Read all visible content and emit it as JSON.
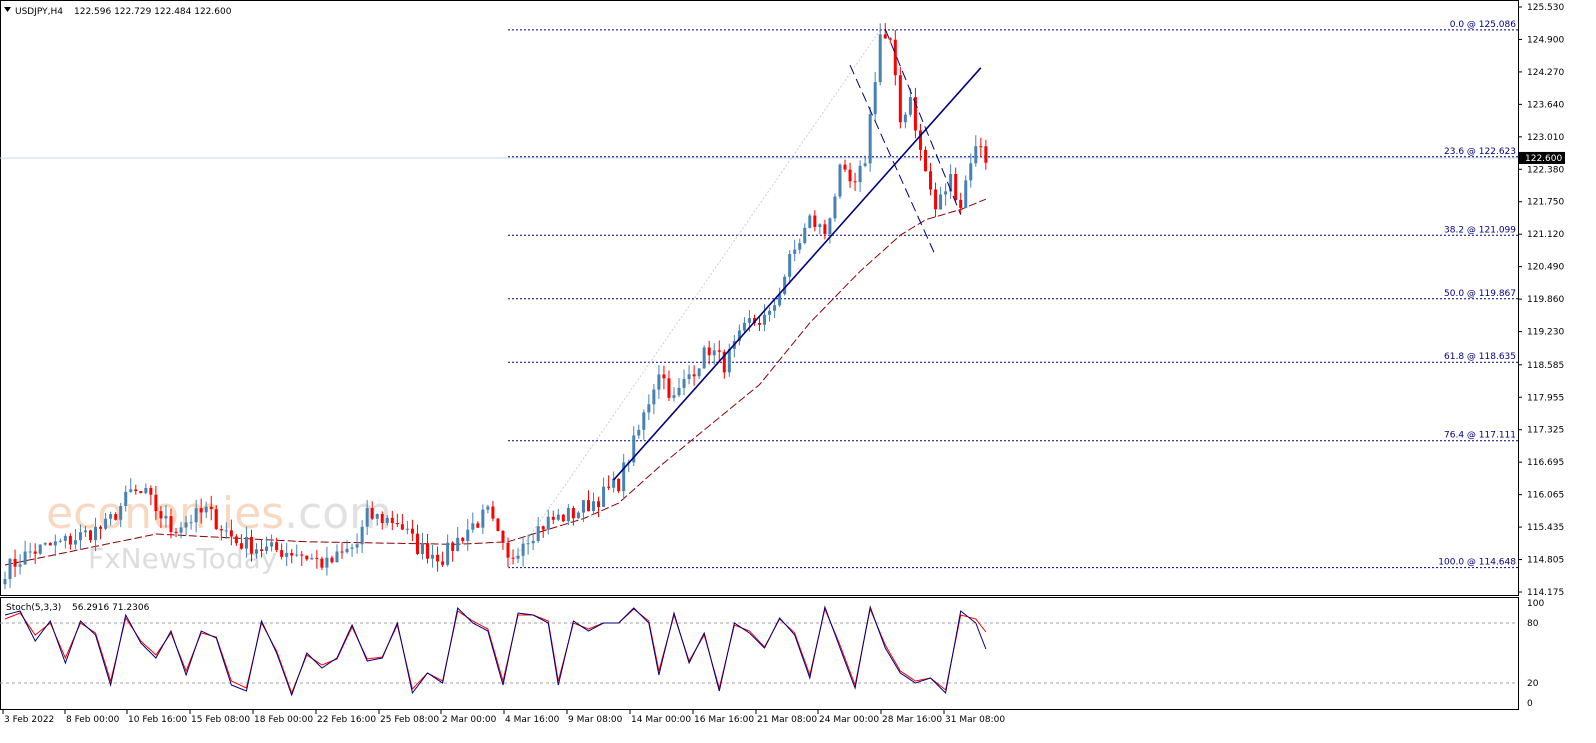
{
  "header": {
    "symbol_label": "USDJPY,H4",
    "ohlc": "122.596 122.729 122.484 122.600"
  },
  "stoch_header": {
    "label": "Stoch(5,3,3)",
    "values": "56.2916 71.2306"
  },
  "watermark": {
    "brand_main": "economies",
    "brand_suffix": ".com",
    "brand_sub": "FxNewsToday"
  },
  "colors": {
    "bull": "#4682b4",
    "bear": "#ff0000",
    "ma": "#8b0000",
    "trendline": "#00007f",
    "fib": "#00007f",
    "stoch_main": "#00007f",
    "stoch_signal": "#ff0000",
    "price_line": "#c6d9ea",
    "price_box": "#000000"
  },
  "chart_data": {
    "type": "candlestick",
    "symbol": "USDJPY",
    "timeframe": "H4",
    "ylim": [
      114.175,
      125.53
    ],
    "y_ticks": [
      "125.530",
      "124.900",
      "124.270",
      "123.640",
      "123.010",
      "122.380",
      "121.750",
      "121.120",
      "120.490",
      "119.860",
      "119.230",
      "118.585",
      "117.955",
      "117.325",
      "116.695",
      "116.065",
      "115.435",
      "114.805",
      "114.175"
    ],
    "x_ticks": [
      "3 Feb 2022",
      "8 Feb 00:00",
      "10 Feb 16:00",
      "15 Feb 08:00",
      "18 Feb 00:00",
      "22 Feb 16:00",
      "25 Feb 08:00",
      "2 Mar 00:00",
      "4 Mar 16:00",
      "9 Mar 08:00",
      "14 Mar 00:00",
      "16 Mar 16:00",
      "21 Mar 08:00",
      "24 Mar 00:00",
      "28 Mar 16:00",
      "31 Mar 08:00"
    ],
    "current_price": "122.600",
    "bar_count": 196,
    "close_anchors": [
      [
        0,
        114.6
      ],
      [
        5,
        114.95
      ],
      [
        12,
        115.15
      ],
      [
        20,
        115.45
      ],
      [
        25,
        116.1
      ],
      [
        28,
        116.05
      ],
      [
        33,
        115.4
      ],
      [
        40,
        115.75
      ],
      [
        46,
        115.15
      ],
      [
        52,
        115.0
      ],
      [
        58,
        114.95
      ],
      [
        64,
        114.7
      ],
      [
        70,
        115.1
      ],
      [
        72,
        115.65
      ],
      [
        78,
        115.55
      ],
      [
        82,
        115.05
      ],
      [
        87,
        114.85
      ],
      [
        92,
        115.4
      ],
      [
        96,
        115.7
      ],
      [
        100,
        114.75
      ],
      [
        103,
        115.2
      ],
      [
        108,
        115.55
      ],
      [
        113,
        115.7
      ],
      [
        118,
        116.0
      ],
      [
        122,
        116.3
      ],
      [
        126,
        117.3
      ],
      [
        130,
        118.5
      ],
      [
        133,
        117.9
      ],
      [
        136,
        118.4
      ],
      [
        140,
        118.9
      ],
      [
        143,
        118.6
      ],
      [
        148,
        119.4
      ],
      [
        152,
        119.5
      ],
      [
        156,
        120.6
      ],
      [
        160,
        121.4
      ],
      [
        163,
        121.15
      ],
      [
        166,
        122.3
      ],
      [
        169,
        122.0
      ],
      [
        171,
        122.6
      ],
      [
        174,
        125.0
      ],
      [
        176,
        124.8
      ],
      [
        178,
        123.3
      ],
      [
        180,
        123.8
      ],
      [
        182,
        122.7
      ],
      [
        185,
        121.6
      ],
      [
        188,
        122.2
      ],
      [
        190,
        121.7
      ],
      [
        192,
        122.6
      ],
      [
        194,
        122.9
      ],
      [
        195,
        122.6
      ]
    ],
    "ma_anchors": [
      [
        0,
        114.7
      ],
      [
        30,
        115.3
      ],
      [
        60,
        115.15
      ],
      [
        90,
        115.1
      ],
      [
        100,
        115.15
      ],
      [
        115,
        115.6
      ],
      [
        122,
        115.9
      ],
      [
        130,
        116.6
      ],
      [
        140,
        117.4
      ],
      [
        150,
        118.2
      ],
      [
        160,
        119.4
      ],
      [
        170,
        120.4
      ],
      [
        178,
        121.1
      ],
      [
        183,
        121.4
      ],
      [
        190,
        121.6
      ],
      [
        195,
        121.8
      ]
    ],
    "fibonacci": [
      {
        "label": "0.0 @ 125.086",
        "price": 125.086
      },
      {
        "label": "23.6 @ 122.623",
        "price": 122.623
      },
      {
        "label": "38.2 @ 121.099",
        "price": 121.099
      },
      {
        "label": "50.0 @ 119.867",
        "price": 119.867
      },
      {
        "label": "61.8 @ 118.635",
        "price": 118.635
      },
      {
        "label": "76.4 @ 117.111",
        "price": 117.111
      },
      {
        "label": "100.0 @ 114.648",
        "price": 114.648
      }
    ],
    "trendline": {
      "from": [
        121,
        116.35
      ],
      "to": [
        194,
        124.35
      ]
    },
    "channel_lines": [
      {
        "from": [
          168,
          124.4
        ],
        "to": [
          185,
          120.7
        ]
      },
      {
        "from": [
          175,
          125.1
        ],
        "to": [
          190,
          121.5
        ]
      }
    ],
    "stochastic": {
      "ylim": [
        0,
        100
      ],
      "levels": [
        80,
        20
      ],
      "y_ticks": [
        "100",
        "80",
        "20",
        "0"
      ],
      "main_anchors": [
        [
          0,
          88
        ],
        [
          3,
          92
        ],
        [
          6,
          62
        ],
        [
          9,
          82
        ],
        [
          12,
          40
        ],
        [
          15,
          82
        ],
        [
          18,
          68
        ],
        [
          21,
          18
        ],
        [
          24,
          88
        ],
        [
          27,
          60
        ],
        [
          30,
          45
        ],
        [
          33,
          72
        ],
        [
          36,
          28
        ],
        [
          39,
          72
        ],
        [
          42,
          65
        ],
        [
          45,
          18
        ],
        [
          48,
          12
        ],
        [
          51,
          82
        ],
        [
          54,
          50
        ],
        [
          57,
          8
        ],
        [
          60,
          50
        ],
        [
          63,
          35
        ],
        [
          66,
          45
        ],
        [
          69,
          78
        ],
        [
          72,
          42
        ],
        [
          75,
          45
        ],
        [
          78,
          80
        ],
        [
          81,
          10
        ],
        [
          84,
          30
        ],
        [
          87,
          20
        ],
        [
          90,
          95
        ],
        [
          93,
          80
        ],
        [
          96,
          72
        ],
        [
          99,
          18
        ],
        [
          102,
          90
        ],
        [
          105,
          88
        ],
        [
          108,
          80
        ],
        [
          110,
          18
        ],
        [
          113,
          82
        ],
        [
          116,
          72
        ],
        [
          119,
          80
        ],
        [
          122,
          80
        ],
        [
          125,
          95
        ],
        [
          128,
          80
        ],
        [
          130,
          28
        ],
        [
          133,
          90
        ],
        [
          136,
          40
        ],
        [
          139,
          70
        ],
        [
          142,
          12
        ],
        [
          145,
          80
        ],
        [
          148,
          70
        ],
        [
          151,
          55
        ],
        [
          154,
          85
        ],
        [
          157,
          68
        ],
        [
          160,
          25
        ],
        [
          163,
          96
        ],
        [
          166,
          55
        ],
        [
          169,
          15
        ],
        [
          172,
          96
        ],
        [
          175,
          55
        ],
        [
          178,
          30
        ],
        [
          181,
          20
        ],
        [
          184,
          25
        ],
        [
          187,
          10
        ],
        [
          190,
          92
        ],
        [
          193,
          80
        ],
        [
          195,
          54
        ]
      ],
      "signal_anchors": [
        [
          0,
          84
        ],
        [
          3,
          90
        ],
        [
          6,
          68
        ],
        [
          9,
          80
        ],
        [
          12,
          45
        ],
        [
          15,
          80
        ],
        [
          18,
          70
        ],
        [
          21,
          22
        ],
        [
          24,
          85
        ],
        [
          27,
          62
        ],
        [
          30,
          48
        ],
        [
          33,
          70
        ],
        [
          36,
          32
        ],
        [
          39,
          70
        ],
        [
          42,
          66
        ],
        [
          45,
          22
        ],
        [
          48,
          15
        ],
        [
          51,
          80
        ],
        [
          54,
          52
        ],
        [
          57,
          10
        ],
        [
          60,
          48
        ],
        [
          63,
          38
        ],
        [
          66,
          44
        ],
        [
          69,
          76
        ],
        [
          72,
          44
        ],
        [
          75,
          46
        ],
        [
          78,
          78
        ],
        [
          81,
          14
        ],
        [
          84,
          30
        ],
        [
          87,
          22
        ],
        [
          90,
          92
        ],
        [
          93,
          82
        ],
        [
          96,
          74
        ],
        [
          99,
          22
        ],
        [
          102,
          88
        ],
        [
          105,
          88
        ],
        [
          108,
          82
        ],
        [
          110,
          22
        ],
        [
          113,
          80
        ],
        [
          116,
          74
        ],
        [
          119,
          80
        ],
        [
          122,
          80
        ],
        [
          125,
          94
        ],
        [
          128,
          82
        ],
        [
          130,
          32
        ],
        [
          133,
          88
        ],
        [
          136,
          42
        ],
        [
          139,
          68
        ],
        [
          142,
          15
        ],
        [
          145,
          78
        ],
        [
          148,
          72
        ],
        [
          151,
          56
        ],
        [
          154,
          84
        ],
        [
          157,
          70
        ],
        [
          160,
          28
        ],
        [
          163,
          94
        ],
        [
          166,
          58
        ],
        [
          169,
          18
        ],
        [
          172,
          94
        ],
        [
          175,
          58
        ],
        [
          178,
          32
        ],
        [
          181,
          22
        ],
        [
          184,
          25
        ],
        [
          187,
          13
        ],
        [
          190,
          88
        ],
        [
          193,
          84
        ],
        [
          195,
          71
        ]
      ]
    }
  }
}
